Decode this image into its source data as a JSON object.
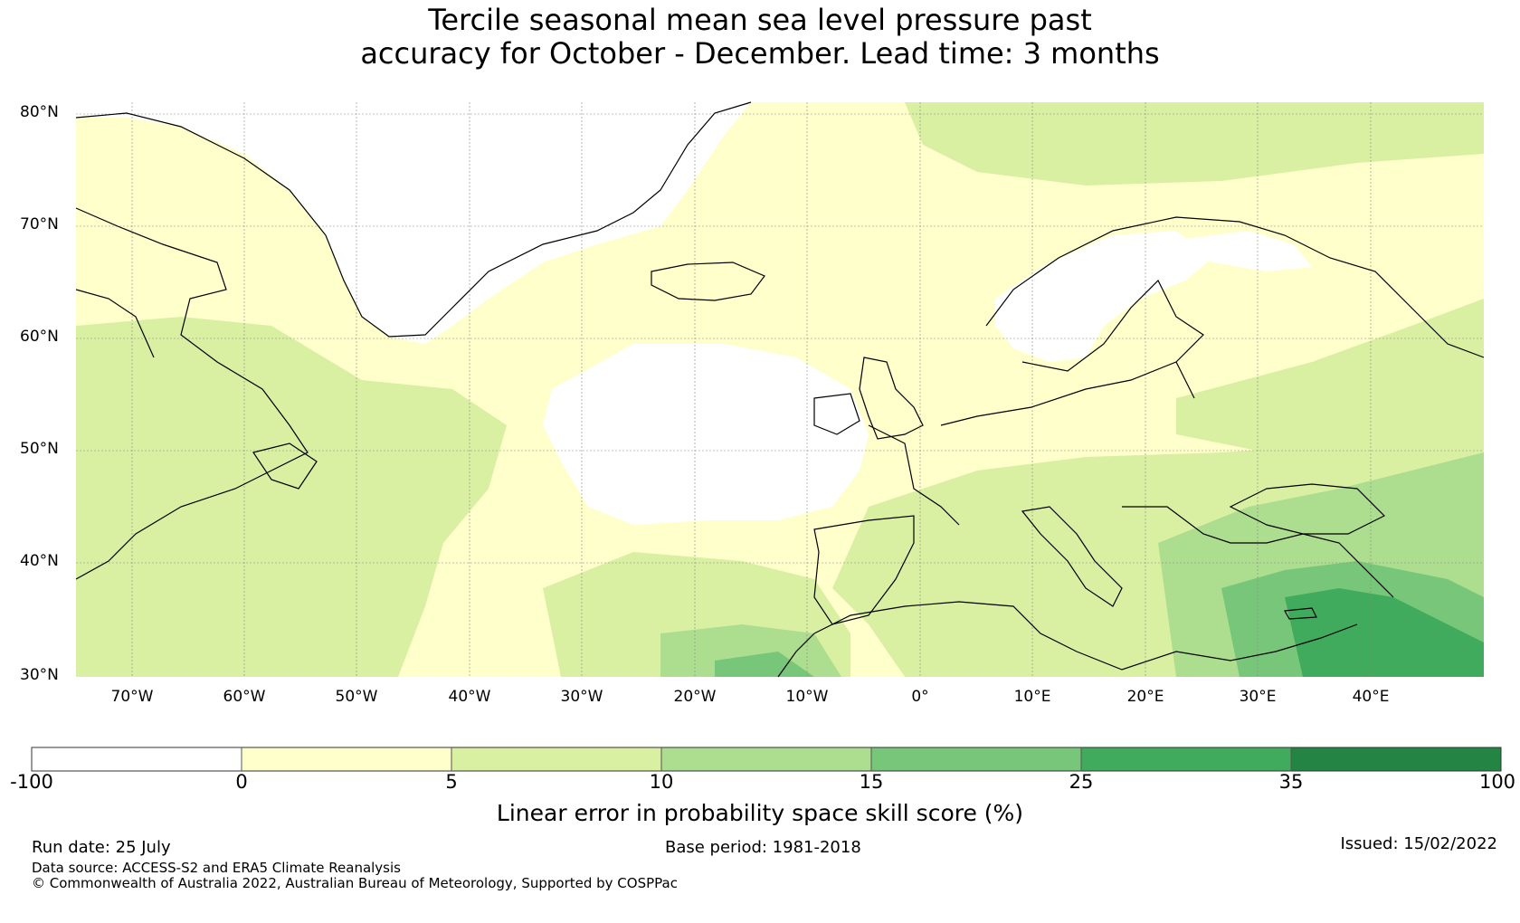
{
  "title_line1": "Tercile seasonal mean sea level pressure past",
  "title_line2": "accuracy for October - December. Lead time: 3 months",
  "lat_labels": [
    "80°N",
    "70°N",
    "60°N",
    "50°N",
    "40°N",
    "30°N"
  ],
  "lon_labels": [
    "70°W",
    "60°W",
    "50°W",
    "40°W",
    "30°W",
    "20°W",
    "10°W",
    "0°",
    "10°E",
    "20°E",
    "30°E",
    "40°E"
  ],
  "colorbar": {
    "label": "Linear error in probability space skill score (%)",
    "ticks": [
      "-100",
      "0",
      "5",
      "10",
      "15",
      "25",
      "35",
      "100"
    ],
    "bins": [
      {
        "from": -100,
        "to": 0,
        "color": "#ffffff"
      },
      {
        "from": 0,
        "to": 5,
        "color": "#ffffcc"
      },
      {
        "from": 5,
        "to": 10,
        "color": "#d9f0a3"
      },
      {
        "from": 10,
        "to": 15,
        "color": "#addd8e"
      },
      {
        "from": 15,
        "to": 25,
        "color": "#78c679"
      },
      {
        "from": 25,
        "to": 35,
        "color": "#41ab5d"
      },
      {
        "from": 35,
        "to": 100,
        "color": "#238443"
      }
    ]
  },
  "footer": {
    "run_date": "Run date: 25 July",
    "base_period": "Base period: 1981-2018",
    "issued": "Issued: 15/02/2022",
    "data_source": "Data source: ACCESS-S2 and ERA5 Climate Reanalysis",
    "copyright": "© Commonwealth of Australia 2022, Australian Bureau of Meteorology, Supported by COSPPac"
  }
}
